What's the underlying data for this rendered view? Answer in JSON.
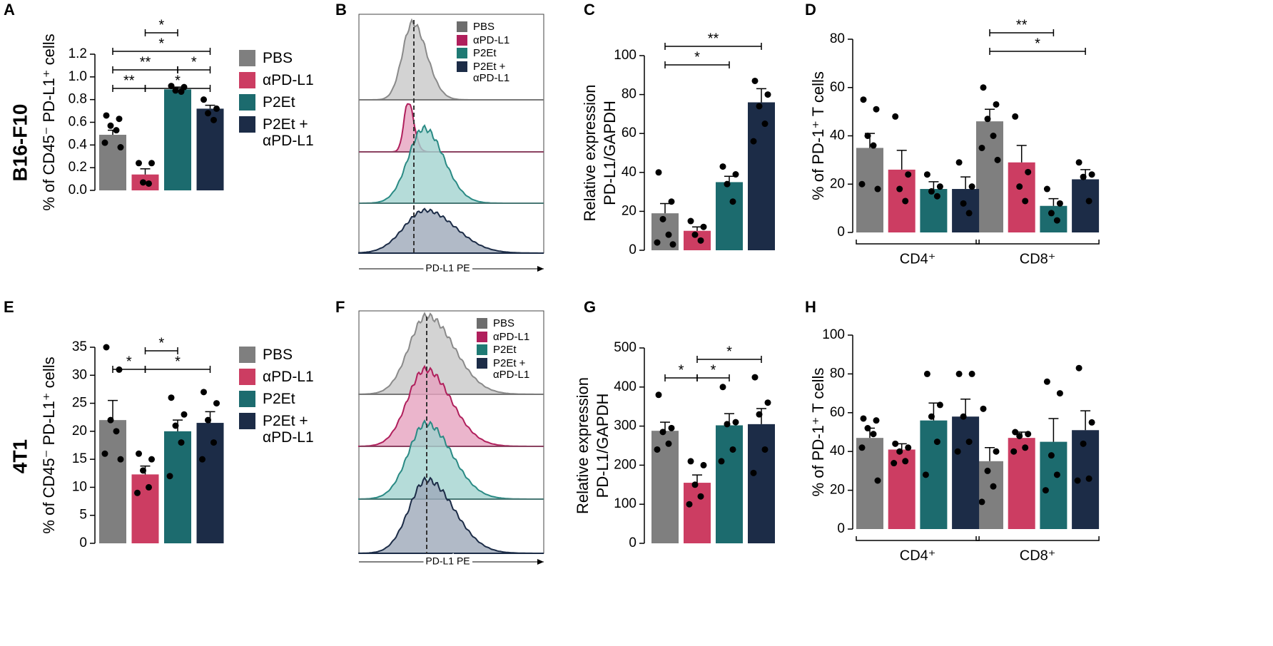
{
  "row_labels": [
    "B16-F10",
    "4T1"
  ],
  "flow_panels": [
    {
      "label": "B",
      "legend": [
        "PBS",
        "αPD-L1",
        "P2Et",
        "P2Et + αPD-L1"
      ],
      "colors": [
        "#6d6d6d",
        "#b01f5c",
        "#1f7a74",
        "#1c2c47"
      ],
      "xlabel": "PD-L1 PE"
    },
    {
      "label": "F",
      "legend": [
        "PBS",
        "αPD-L1",
        "P2Et",
        "P2Et + αPD-L1"
      ],
      "colors": [
        "#6d6d6d",
        "#b01f5c",
        "#1f7a74",
        "#1c2c47"
      ],
      "xlabel": "PD-L1 PE"
    }
  ],
  "chart_data": [
    {
      "label": "A",
      "type": "bar",
      "ylabel": [
        "% of CD45⁻ PD-L1⁺ cells"
      ],
      "ylim": [
        0,
        1.2
      ],
      "yticks": [
        {
          "value": 0,
          "label": "0.0"
        },
        0.2,
        0.4,
        0.6,
        0.8,
        {
          "value": 1,
          "label": "1.0"
        },
        1.2
      ],
      "series": [
        {
          "name": "PBS",
          "color": "#7f7f7f",
          "values": [
            0.49
          ],
          "errors": [
            0.04
          ],
          "points": [
            [
              0.66,
              0.63,
              0.57,
              0.53,
              0.42,
              0.38
            ]
          ]
        },
        {
          "name": "αPD-L1",
          "color": "#cc3d62",
          "values": [
            0.14
          ],
          "errors": [
            0.05
          ],
          "points": [
            [
              0.24,
              0.24,
              0.07,
              0.06
            ]
          ]
        },
        {
          "name": "P2Et",
          "color": "#1c6b6e",
          "values": [
            0.89
          ],
          "errors": [
            0.02
          ],
          "points": [
            [
              0.92,
              0.91,
              0.88,
              0.87
            ]
          ]
        },
        {
          "name": "P2Et + αPD-L1",
          "color": "#1c2c47",
          "values": [
            0.72
          ],
          "errors": [
            0.03
          ],
          "points": [
            [
              0.8,
              0.72,
              0.68,
              0.62
            ]
          ]
        }
      ],
      "brackets": [
        {
          "from": 0,
          "to": 1,
          "label": "**"
        },
        {
          "from": 1,
          "to": 3,
          "label": "*"
        },
        {
          "from": 0,
          "to": 2,
          "label": "**"
        },
        {
          "from": 0,
          "to": 3,
          "label": "*"
        },
        {
          "from": 1,
          "to": 2,
          "label": "*"
        },
        {
          "from": 2,
          "to": 3,
          "label": "*"
        }
      ]
    },
    {
      "label": "C",
      "type": "bar",
      "ylabel": [
        "Relative expression",
        "PD-L1/GAPDH"
      ],
      "ylim": [
        0,
        100
      ],
      "yticks": [
        0,
        20,
        40,
        60,
        80,
        100
      ],
      "series": [
        {
          "color": "#7f7f7f",
          "values": [
            19
          ],
          "errors": [
            5
          ],
          "points": [
            [
              40,
              25,
              16,
              8,
              4,
              3
            ]
          ]
        },
        {
          "color": "#cc3d62",
          "values": [
            10
          ],
          "errors": [
            2
          ],
          "points": [
            [
              15,
              12,
              8,
              5
            ]
          ]
        },
        {
          "color": "#1c6b6e",
          "values": [
            35
          ],
          "errors": [
            3
          ],
          "points": [
            [
              43,
              39,
              34,
              25
            ]
          ]
        },
        {
          "color": "#1c2c47",
          "values": [
            76
          ],
          "errors": [
            7
          ],
          "points": [
            [
              87,
              80,
              74,
              65,
              56
            ]
          ]
        }
      ],
      "brackets": [
        {
          "from": 0,
          "to": 2,
          "label": "*"
        },
        {
          "from": 0,
          "to": 3,
          "label": "**"
        }
      ]
    },
    {
      "label": "D",
      "type": "bar",
      "ylabel": [
        "% of PD-1⁺ T cells"
      ],
      "categories": [
        "CD4⁺",
        "CD8⁺"
      ],
      "ylim": [
        0,
        80
      ],
      "yticks": [
        0,
        20,
        40,
        60,
        80
      ],
      "series": [
        {
          "color": "#7f7f7f",
          "values": [
            35,
            46
          ],
          "errors": [
            6,
            5
          ],
          "points": [
            [
              55,
              51,
              40,
              36,
              20,
              18
            ],
            [
              60,
              53,
              47,
              40,
              35,
              30
            ]
          ]
        },
        {
          "color": "#cc3d62",
          "values": [
            26,
            29
          ],
          "errors": [
            8,
            7
          ],
          "points": [
            [
              48,
              24,
              18,
              13
            ],
            [
              48,
              25,
              19,
              13
            ]
          ]
        },
        {
          "color": "#1c6b6e",
          "values": [
            18,
            11
          ],
          "errors": [
            3,
            3
          ],
          "points": [
            [
              24,
              19,
              17,
              15
            ],
            [
              18,
              12,
              8,
              5
            ]
          ]
        },
        {
          "color": "#1c2c47",
          "values": [
            18,
            22
          ],
          "errors": [
            5,
            4
          ],
          "points": [
            [
              29,
              19,
              12,
              8
            ],
            [
              29,
              24,
              23,
              13
            ]
          ]
        }
      ],
      "brackets": [
        {
          "group": 1,
          "from": 0,
          "to": 3,
          "label": "*"
        },
        {
          "group": 1,
          "from": 0,
          "to": 2,
          "label": "**"
        }
      ]
    },
    {
      "label": "E",
      "type": "bar",
      "ylabel": [
        "% of CD45⁻ PD-L1⁺ cells"
      ],
      "ylim": [
        0,
        35
      ],
      "yticks": [
        0,
        5,
        10,
        15,
        20,
        25,
        30,
        35
      ],
      "series": [
        {
          "name": "PBS",
          "color": "#7f7f7f",
          "values": [
            22
          ],
          "errors": [
            3.5
          ],
          "points": [
            [
              35,
              31,
              22,
              20,
              16,
              15
            ]
          ]
        },
        {
          "name": "αPD-L1",
          "color": "#cc3d62",
          "values": [
            12.3
          ],
          "errors": [
            1.5
          ],
          "points": [
            [
              16,
              15,
              13,
              10,
              9
            ]
          ]
        },
        {
          "name": "P2Et",
          "color": "#1c6b6e",
          "values": [
            20
          ],
          "errors": [
            2
          ],
          "points": [
            [
              26,
              23,
              21,
              18,
              12
            ]
          ]
        },
        {
          "name": "P2Et + αPD-L1",
          "color": "#1c2c47",
          "values": [
            21.5
          ],
          "errors": [
            2
          ],
          "points": [
            [
              27,
              25,
              22,
              18,
              15
            ]
          ]
        }
      ],
      "brackets": [
        {
          "from": 1,
          "to": 3,
          "label": "*"
        },
        {
          "from": 1,
          "to": 2,
          "label": "*"
        },
        {
          "from": 0,
          "to": 1,
          "label": "*"
        }
      ]
    },
    {
      "label": "G",
      "type": "bar",
      "ylabel": [
        "Relative expression",
        "PD-L1/GAPDH"
      ],
      "ylim": [
        0,
        500
      ],
      "yticks": [
        0,
        100,
        200,
        300,
        400,
        500
      ],
      "series": [
        {
          "color": "#7f7f7f",
          "values": [
            288
          ],
          "errors": [
            22
          ],
          "points": [
            [
              380,
              295,
              285,
              255,
              240
            ]
          ]
        },
        {
          "color": "#cc3d62",
          "values": [
            155
          ],
          "errors": [
            20
          ],
          "points": [
            [
              210,
              200,
              150,
              120,
              100
            ]
          ]
        },
        {
          "color": "#1c6b6e",
          "values": [
            302
          ],
          "errors": [
            30
          ],
          "points": [
            [
              400,
              310,
              305,
              240,
              210
            ]
          ]
        },
        {
          "color": "#1c2c47",
          "values": [
            305
          ],
          "errors": [
            40
          ],
          "points": [
            [
              425,
              360,
              330,
              240,
              180
            ]
          ]
        }
      ],
      "brackets": [
        {
          "from": 0,
          "to": 1,
          "label": "*"
        },
        {
          "from": 1,
          "to": 2,
          "label": "*"
        },
        {
          "from": 1,
          "to": 3,
          "label": "*"
        }
      ]
    },
    {
      "label": "H",
      "type": "bar",
      "ylabel": [
        "% of PD-1⁺ T cells"
      ],
      "categories": [
        "CD4⁺",
        "CD8⁺"
      ],
      "ylim": [
        0,
        100
      ],
      "yticks": [
        0,
        20,
        40,
        60,
        80,
        100
      ],
      "series": [
        {
          "color": "#7f7f7f",
          "values": [
            47,
            35
          ],
          "errors": [
            5,
            7
          ],
          "points": [
            [
              57,
              56,
              52,
              49,
              42,
              25
            ],
            [
              62,
              40,
              30,
              22,
              14
            ]
          ]
        },
        {
          "color": "#cc3d62",
          "values": [
            41,
            47
          ],
          "errors": [
            3,
            3
          ],
          "points": [
            [
              44,
              42,
              40,
              35,
              34
            ],
            [
              50,
              49,
              48,
              42,
              40
            ]
          ]
        },
        {
          "color": "#1c6b6e",
          "values": [
            56,
            45
          ],
          "errors": [
            9,
            12
          ],
          "points": [
            [
              80,
              64,
              58,
              45,
              28
            ],
            [
              76,
              70,
              38,
              28,
              20
            ]
          ]
        },
        {
          "color": "#1c2c47",
          "values": [
            58,
            51
          ],
          "errors": [
            9,
            10
          ],
          "points": [
            [
              80,
              80,
              58,
              45,
              40
            ],
            [
              83,
              55,
              44,
              26,
              25
            ]
          ]
        }
      ],
      "brackets": []
    }
  ]
}
